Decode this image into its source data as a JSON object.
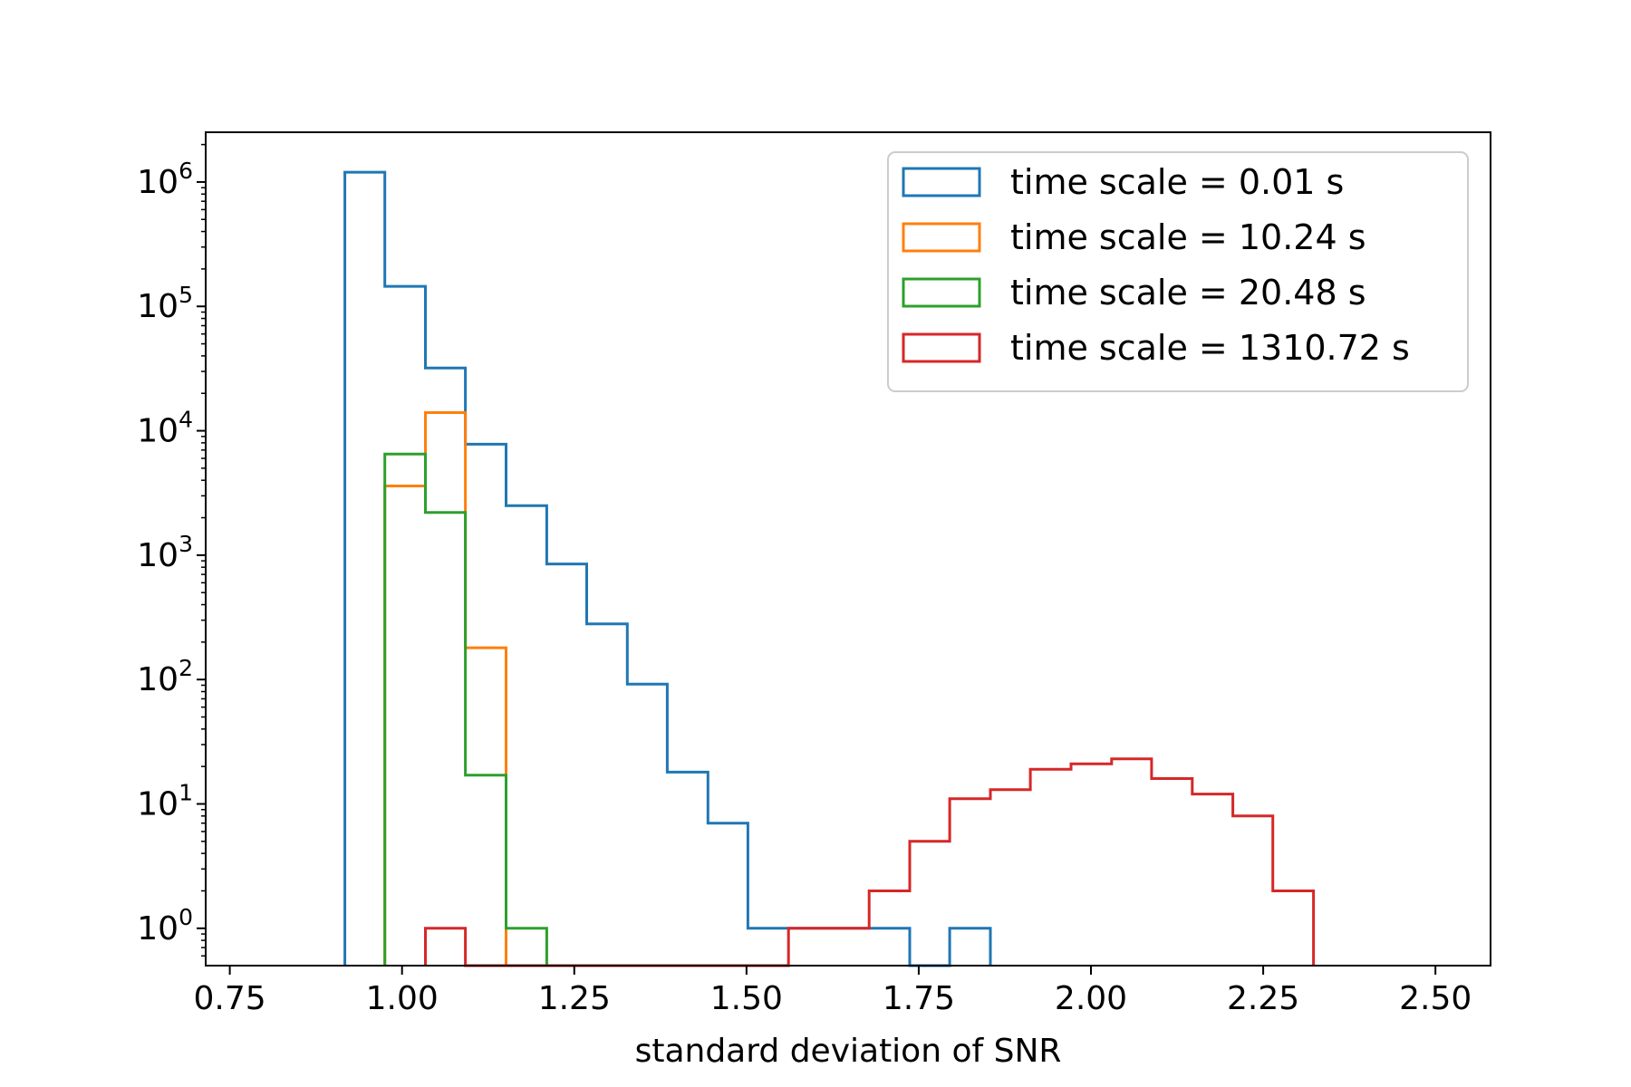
{
  "chart_data": {
    "type": "histogram",
    "title": "",
    "xlabel": "standard deviation of SNR",
    "ylabel": "",
    "xlim": [
      0.715,
      2.58
    ],
    "ylim_log10": [
      -0.3,
      6.4
    ],
    "yscale": "log",
    "grid": false,
    "legend_position": "top-right",
    "x_ticks": [
      0.75,
      1.0,
      1.25,
      1.5,
      1.75,
      2.0,
      2.25,
      2.5
    ],
    "x_tick_labels": [
      "0.75",
      "1.00",
      "1.25",
      "1.50",
      "1.75",
      "2.00",
      "2.25",
      "2.50"
    ],
    "y_ticks": [
      {
        "value": 1,
        "base": "10",
        "exp": "0"
      },
      {
        "value": 10,
        "base": "10",
        "exp": "1"
      },
      {
        "value": 100,
        "base": "10",
        "exp": "2"
      },
      {
        "value": 1000,
        "base": "10",
        "exp": "3"
      },
      {
        "value": 10000,
        "base": "10",
        "exp": "4"
      },
      {
        "value": 100000,
        "base": "10",
        "exp": "5"
      },
      {
        "value": 1000000,
        "base": "10",
        "exp": "6"
      }
    ],
    "series": [
      {
        "name": "time scale = 0.01 s",
        "color": "#1f77b4",
        "bin_edges": [
          0.917,
          0.975,
          1.034,
          1.092,
          1.151,
          1.21,
          1.268,
          1.327,
          1.385,
          1.444,
          1.502,
          1.561,
          1.62,
          1.678,
          1.737,
          1.795,
          1.854
        ],
        "counts": [
          1200000,
          145000,
          32000,
          7800,
          2500,
          850,
          280,
          92,
          18,
          7,
          1,
          1,
          1,
          1,
          0,
          1
        ]
      },
      {
        "name": "time scale = 10.24 s",
        "color": "#ff7f0e",
        "bin_edges": [
          0.975,
          1.034,
          1.092,
          1.151
        ],
        "counts": [
          3600,
          14000,
          180
        ]
      },
      {
        "name": "time scale = 20.48 s",
        "color": "#2ca02c",
        "bin_edges": [
          0.975,
          1.034,
          1.092,
          1.151,
          1.21
        ],
        "counts": [
          6500,
          2200,
          17,
          1
        ]
      },
      {
        "name": "time scale = 1310.72 s",
        "color": "#d62728",
        "bin_edges": [
          1.034,
          1.092,
          1.151,
          1.21,
          1.268,
          1.327,
          1.385,
          1.444,
          1.502,
          1.561,
          1.62,
          1.678,
          1.737,
          1.795,
          1.854,
          1.912,
          1.971,
          2.03,
          2.088,
          2.147,
          2.206,
          2.264,
          2.323
        ],
        "counts": [
          1,
          0,
          0,
          0,
          0,
          0,
          0,
          0,
          0,
          1,
          1,
          2,
          5,
          11,
          13,
          19,
          21,
          23,
          16,
          12,
          8,
          2
        ]
      }
    ]
  }
}
